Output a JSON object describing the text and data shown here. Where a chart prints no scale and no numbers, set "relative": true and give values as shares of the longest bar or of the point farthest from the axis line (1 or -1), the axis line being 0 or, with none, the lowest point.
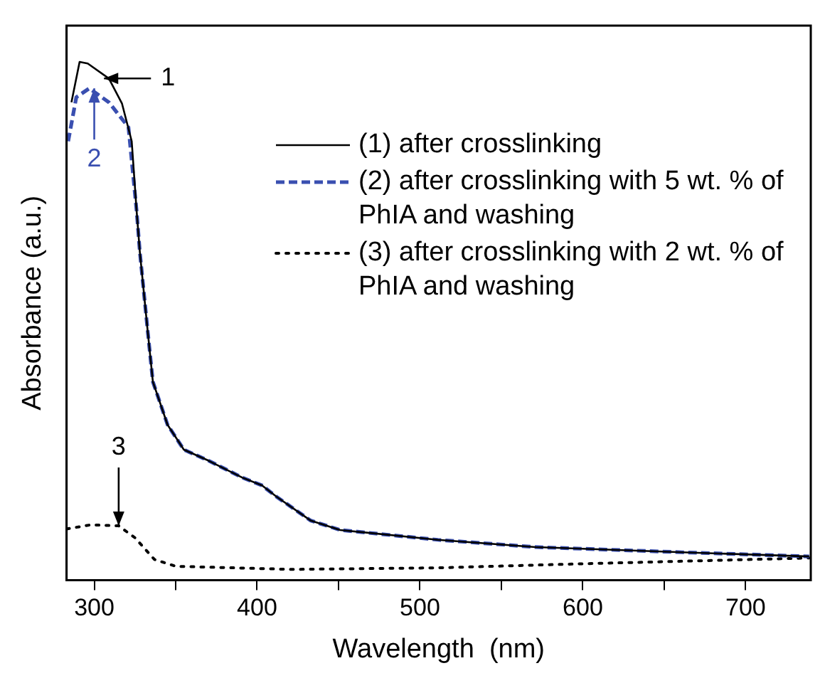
{
  "chart_data": {
    "type": "line",
    "xlabel": "Wavelength  (nm)",
    "ylabel": "Absorbance (a.u.)",
    "relative": true,
    "xlim": [
      283,
      740
    ],
    "xticks": [
      300,
      {
        "value": 350,
        "label": null
      },
      400,
      {
        "value": 450,
        "label": null
      },
      500,
      {
        "value": 550,
        "label": null
      },
      600,
      {
        "value": 650,
        "label": null
      },
      700
    ],
    "grid": false,
    "legend": "top right",
    "marker": "none",
    "series": [
      {
        "name": "(1) after crosslinking",
        "color": "#000000",
        "line_style": "solid",
        "x": [
          286,
          291,
          296,
          309,
          317,
          323,
          326,
          328,
          333,
          336,
          345,
          355,
          370,
          391,
          403,
          412,
          433,
          451,
          511,
          571,
          661,
          739
        ],
        "values": [
          0.922,
          1.0,
          0.997,
          0.968,
          0.92,
          0.847,
          0.713,
          0.633,
          0.475,
          0.383,
          0.3,
          0.252,
          0.231,
          0.198,
          0.183,
          0.161,
          0.115,
          0.097,
          0.078,
          0.064,
          0.054,
          0.046
        ]
      },
      {
        "name": "(2) after crosslinking with 5 wt. % of PhIA and washing",
        "color": "#3a4fb0",
        "line_style": "dashed",
        "x": [
          284,
          289,
          297,
          309,
          321,
          326,
          328,
          333,
          336,
          345,
          355,
          370,
          391,
          403,
          412,
          433,
          451,
          511,
          571,
          661,
          739
        ],
        "values": [
          0.847,
          0.932,
          0.949,
          0.922,
          0.874,
          0.713,
          0.633,
          0.475,
          0.383,
          0.3,
          0.252,
          0.231,
          0.198,
          0.183,
          0.161,
          0.115,
          0.097,
          0.078,
          0.064,
          0.054,
          0.046
        ]
      },
      {
        "name": "(3) after crosslinking with 2 wt. % of PhIA and washing",
        "color": "#000000",
        "line_style": "dotted",
        "x": [
          283,
          298,
          315,
          325,
          337,
          350,
          421,
          511,
          602,
          739
        ],
        "values": [
          0.099,
          0.107,
          0.105,
          0.082,
          0.04,
          0.027,
          0.021,
          0.024,
          0.032,
          0.043
        ]
      }
    ],
    "annotations": [
      {
        "text": "1",
        "x": 306,
        "y": 0.968
      },
      {
        "text": "2",
        "x": 300,
        "y": 0.949
      },
      {
        "text": "3",
        "x": 315,
        "y": 0.105
      }
    ]
  }
}
